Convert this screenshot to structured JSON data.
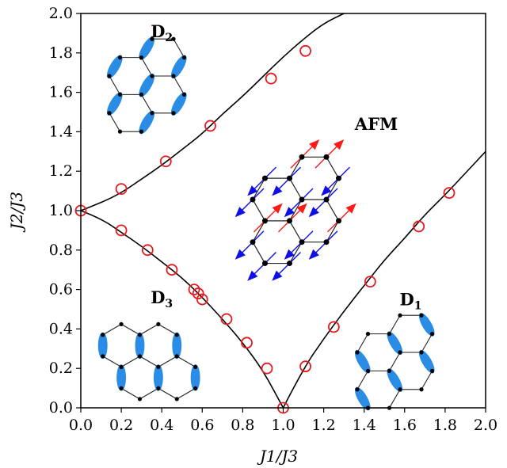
{
  "chart_data": {
    "type": "scatter",
    "xlabel": "J1/J3",
    "ylabel": "J2/J3",
    "xlim": [
      0.0,
      2.0
    ],
    "ylim": [
      0.0,
      2.0
    ],
    "x_ticks": [
      "0.0",
      "0.2",
      "0.4",
      "0.6",
      "0.8",
      "1.0",
      "1.2",
      "1.4",
      "1.6",
      "1.8",
      "2.0"
    ],
    "y_ticks": [
      "0.0",
      "0.2",
      "0.4",
      "0.6",
      "0.8",
      "1.0",
      "1.2",
      "1.4",
      "1.6",
      "1.8",
      "2.0"
    ],
    "grid": false,
    "phase_labels": [
      {
        "text": "D",
        "sub": "2",
        "x": 0.4,
        "y": 1.88
      },
      {
        "text": "AFM",
        "sub": "",
        "x": 1.46,
        "y": 1.41
      },
      {
        "text": "D",
        "sub": "3",
        "x": 0.4,
        "y": 0.53
      },
      {
        "text": "D",
        "sub": "1",
        "x": 1.63,
        "y": 0.52
      }
    ],
    "boundary_lines": [
      {
        "name": "",
        "points": [
          [
            0.0,
            1.0
          ],
          [
            0.1,
            1.04
          ],
          [
            0.2,
            1.09
          ],
          [
            0.3,
            1.16
          ],
          [
            0.4,
            1.23
          ],
          [
            0.5,
            1.31
          ],
          [
            0.6,
            1.39
          ],
          [
            0.7,
            1.49
          ],
          [
            0.8,
            1.58
          ],
          [
            0.9,
            1.68
          ],
          [
            1.0,
            1.78
          ],
          [
            1.1,
            1.87
          ],
          [
            1.2,
            1.95
          ],
          [
            1.3,
            2.0
          ]
        ]
      },
      {
        "name": "",
        "points": [
          [
            0.0,
            1.0
          ],
          [
            0.1,
            0.96
          ],
          [
            0.2,
            0.89
          ],
          [
            0.3,
            0.82
          ],
          [
            0.4,
            0.74
          ],
          [
            0.5,
            0.66
          ],
          [
            0.6,
            0.56
          ],
          [
            0.7,
            0.45
          ],
          [
            0.8,
            0.33
          ],
          [
            0.9,
            0.19
          ],
          [
            1.0,
            0.0
          ]
        ]
      },
      {
        "name": "",
        "points": [
          [
            1.0,
            0.0
          ],
          [
            1.1,
            0.2
          ],
          [
            1.2,
            0.35
          ],
          [
            1.3,
            0.49
          ],
          [
            1.4,
            0.62
          ],
          [
            1.5,
            0.75
          ],
          [
            1.6,
            0.86
          ],
          [
            1.7,
            0.98
          ],
          [
            1.8,
            1.08
          ],
          [
            1.9,
            1.19
          ],
          [
            2.0,
            1.3
          ]
        ]
      }
    ],
    "series": [
      {
        "name": "",
        "color": "#e6191e",
        "marker": "open-circle",
        "points": [
          [
            0.0,
            1.0
          ],
          [
            0.2,
            1.11
          ],
          [
            0.42,
            1.25
          ],
          [
            0.64,
            1.43
          ],
          [
            0.94,
            1.67
          ],
          [
            1.11,
            1.81
          ],
          [
            0.2,
            0.9
          ],
          [
            0.33,
            0.8
          ],
          [
            0.45,
            0.7
          ],
          [
            0.56,
            0.6
          ],
          [
            0.58,
            0.58
          ],
          [
            0.6,
            0.55
          ],
          [
            0.72,
            0.45
          ],
          [
            0.82,
            0.33
          ],
          [
            0.92,
            0.2
          ],
          [
            1.0,
            0.0
          ],
          [
            1.11,
            0.21
          ],
          [
            1.25,
            0.41
          ],
          [
            1.43,
            0.64
          ],
          [
            1.67,
            0.92
          ],
          [
            1.82,
            1.09
          ]
        ]
      }
    ],
    "markers": {
      "up_spin_color": "#ff1a1a",
      "down_spin_color": "#0f0fe6",
      "dimer_color": "#2b8ce6"
    }
  }
}
